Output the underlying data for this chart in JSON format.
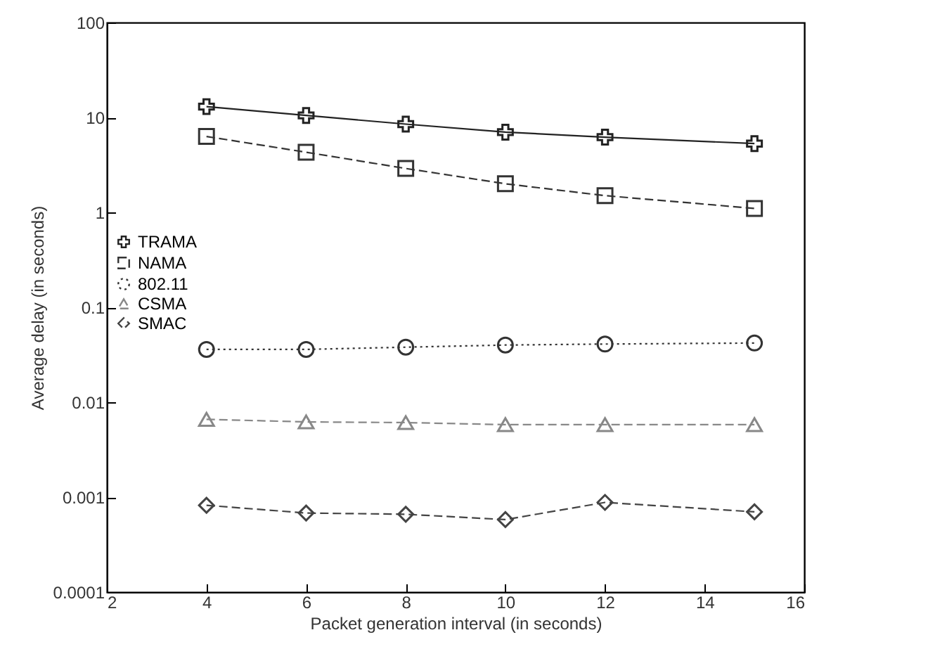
{
  "chart_data": {
    "type": "line",
    "xlabel": "Packet generation interval (in seconds)",
    "ylabel": "Average delay (in seconds)",
    "x": [
      4,
      6,
      8,
      10,
      12,
      15
    ],
    "series": [
      {
        "name": "TRAMA",
        "color": "#222222",
        "marker": "cross",
        "line_style": "solid",
        "values": [
          13,
          10.5,
          8.5,
          7,
          6.2,
          5.3
        ]
      },
      {
        "name": "NAMA",
        "color": "#333333",
        "marker": "square",
        "line_style": "dashed",
        "values": [
          6.3,
          4.3,
          2.9,
          2.0,
          1.5,
          1.1
        ]
      },
      {
        "name": "802.11",
        "color": "#333333",
        "marker": "circle",
        "line_style": "dotted",
        "values": [
          0.036,
          0.036,
          0.038,
          0.04,
          0.041,
          0.042
        ]
      },
      {
        "name": "CSMA",
        "color": "#888888",
        "marker": "triangle",
        "line_style": "dashed",
        "values": [
          0.0066,
          0.0062,
          0.0061,
          0.0058,
          0.0058,
          0.0058
        ]
      },
      {
        "name": "SMAC",
        "color": "#444444",
        "marker": "diamond",
        "line_style": "dashed",
        "values": [
          0.00082,
          0.00068,
          0.00066,
          0.00058,
          0.00088,
          0.0007
        ]
      }
    ],
    "xlim": [
      2,
      16
    ],
    "xticks": [
      2,
      4,
      6,
      8,
      10,
      12,
      14,
      16
    ],
    "ylim": [
      0.0001,
      100
    ],
    "yticks": [
      0.0001,
      0.001,
      0.01,
      0.1,
      1,
      10,
      100
    ],
    "log": "y",
    "grid": false,
    "legend": "left"
  }
}
